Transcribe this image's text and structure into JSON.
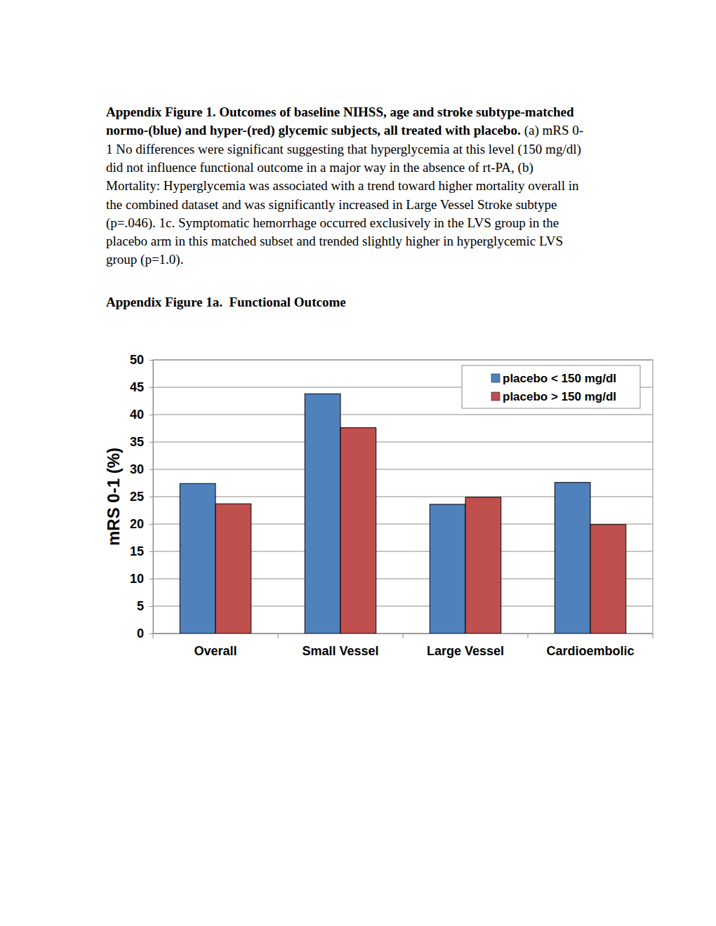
{
  "document": {
    "caption_title_lines": [
      "Appendix Figure 1. Outcomes of baseline NIHSS, age and stroke subtype-matched",
      "normo-(blue) and hyper-(red) glycemic subjects, all treated with placebo."
    ],
    "caption_body_lines": [
      "(a) mRS 0-",
      "1 No differences were significant suggesting that hyperglycemia at this level (150 mg/dl)",
      "did not influence functional outcome in a major way in the absence of rt-PA, (b)",
      "Mortality: Hyperglycemia was associated with a trend toward higher mortality overall in",
      "the combined dataset and was significantly increased in Large Vessel Stroke subtype",
      "(p=.046). 1c. Symptomatic hemorrhage occurred exclusively in the LVS group in the",
      "placebo arm in this matched subset and trended slightly higher in hyperglycemic LVS",
      "group (p=1.0)."
    ],
    "heading": "Appendix Figure 1a.  Functional Outcome"
  },
  "chart_data": {
    "type": "bar",
    "y_label": "mRS 0-1 (%)",
    "categories": [
      "Overall",
      "Small Vessel",
      "Large Vessel",
      "Cardioembolic"
    ],
    "series": [
      {
        "name": "placebo < 150 mg/dl",
        "color": "#4f81bd",
        "values": [
          27.4,
          43.8,
          23.6,
          27.6
        ]
      },
      {
        "name": "placebo > 150 mg/dl",
        "color": "#c0504d",
        "values": [
          23.7,
          37.6,
          24.9,
          19.9
        ]
      }
    ],
    "ylim": [
      0,
      50
    ],
    "yticks": [
      0,
      5,
      10,
      15,
      20,
      25,
      30,
      35,
      40,
      45,
      50
    ],
    "grid": true,
    "legend": "top-right"
  }
}
